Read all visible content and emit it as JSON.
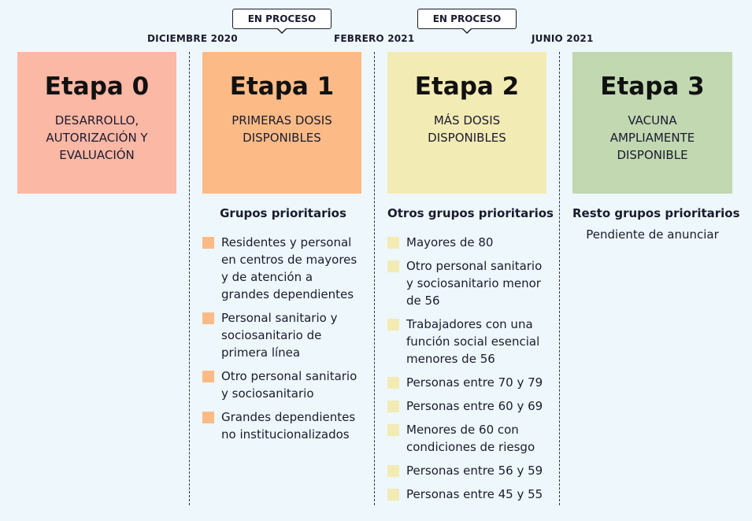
{
  "colors": {
    "stage0": "#fbb8a5",
    "stage1": "#fcbb86",
    "stage2": "#f3ebb4",
    "stage3": "#c1d8b1"
  },
  "dates": [
    "DICIEMBRE 2020",
    "FEBRERO 2021",
    "JUNIO 2021"
  ],
  "badges": [
    "EN PROCESO",
    "EN PROCESO"
  ],
  "stages": [
    {
      "title": "Etapa 0",
      "description": "DESARROLLO, AUTORIZACIÓN Y EVALUACIÓN"
    },
    {
      "title": "Etapa 1",
      "description": "PRIMERAS DOSIS DISPONIBLES"
    },
    {
      "title": "Etapa 2",
      "description": "MÁS DOSIS DISPONIBLES"
    },
    {
      "title": "Etapa 3",
      "description": "VACUNA AMPLIAMENTE DISPONIBLE"
    }
  ],
  "columns": [
    {
      "heading": "Grupos prioritarios",
      "items": [
        "Residentes y personal en centros de mayores y de atención a grandes dependientes",
        "Personal sanitario y sociosanitario de primera línea",
        "Otro personal sanitario y sociosanitario",
        "Grandes dependientes no institucionalizados"
      ]
    },
    {
      "heading": "Otros grupos prioritarios",
      "items": [
        "Mayores de 80",
        "Otro personal sanitario y sociosanitario menor de 56",
        "Trabajadores con una función social esencial menores de 56",
        "Personas entre 70 y 79",
        "Personas entre 60 y 69",
        "Menores de 60 con condiciones de riesgo",
        "Personas entre 56 y 59",
        "Personas entre 45 y 55"
      ]
    },
    {
      "heading": "Resto grupos prioritarios",
      "pending": "Pendiente de anunciar"
    }
  ]
}
